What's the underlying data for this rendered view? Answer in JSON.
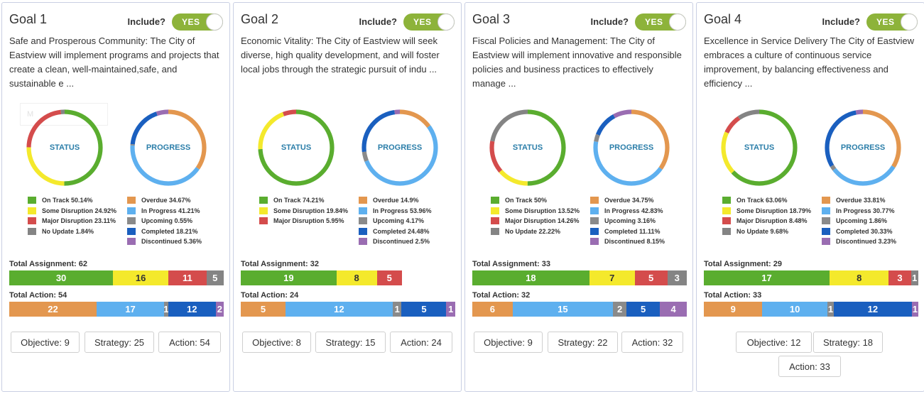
{
  "include_label": "Include?",
  "toggle_label": "YES",
  "status_center": "STATUS",
  "progress_center": "PROGRESS",
  "status_colors": [
    "#5aad2f",
    "#f4e92c",
    "#d44c4c",
    "#848484"
  ],
  "progress_colors": [
    "#e3974f",
    "#5eb0ef",
    "#8a8a8a",
    "#1a5fbf",
    "#9a6db2"
  ],
  "ghost_text": "M",
  "goals": [
    {
      "title": "Goal 1",
      "description": "Safe and Prosperous Community: The City of Eastview will implement programs and projects that create a clean, well-maintained,safe, and sustainable e ...",
      "status": [
        {
          "label": "On Track 50.14%",
          "value": 50.14
        },
        {
          "label": "Some Disruption 24.92%",
          "value": 24.92
        },
        {
          "label": "Major Disruption 23.11%",
          "value": 23.11
        },
        {
          "label": "No Update 1.84%",
          "value": 1.84
        }
      ],
      "progress": [
        {
          "label": "Overdue 34.67%",
          "value": 34.67
        },
        {
          "label": "In Progress 41.21%",
          "value": 41.21
        },
        {
          "label": "Upcoming 0.55%",
          "value": 0.55
        },
        {
          "label": "Completed 18.21%",
          "value": 18.21
        },
        {
          "label": "Discontinued 5.36%",
          "value": 5.36
        }
      ],
      "assignment_label": "Total Assignment: 62",
      "assignment_total": 62,
      "assignment_values": [
        30,
        16,
        11,
        5
      ],
      "action_label": "Total Action: 54",
      "action_total": 54,
      "action_values": [
        22,
        17,
        1,
        12,
        2
      ],
      "buttons": [
        "Objective: 9",
        "Strategy: 25",
        "Action: 54"
      ]
    },
    {
      "title": "Goal 2",
      "description": "Economic Vitality: The City of Eastview will seek diverse, high quality development, and will foster local jobs through the strategic pursuit of indu ...",
      "status": [
        {
          "label": "On Track 74.21%",
          "value": 74.21
        },
        {
          "label": "Some Disruption 19.84%",
          "value": 19.84
        },
        {
          "label": "Major Disruption 5.95%",
          "value": 5.95
        }
      ],
      "progress": [
        {
          "label": "Overdue 14.9%",
          "value": 14.9
        },
        {
          "label": "In Progress 53.96%",
          "value": 53.96
        },
        {
          "label": "Upcoming 4.17%",
          "value": 4.17
        },
        {
          "label": "Completed 24.48%",
          "value": 24.48
        },
        {
          "label": "Discontinued 2.5%",
          "value": 2.5
        }
      ],
      "assignment_label": "Total Assignment: 32",
      "assignment_total": 32,
      "assignment_values": [
        19,
        8,
        5
      ],
      "action_label": "Total Action: 24",
      "action_total": 24,
      "action_values": [
        5,
        12,
        1,
        5,
        1
      ],
      "buttons": [
        "Objective: 8",
        "Strategy: 15",
        "Action: 24"
      ]
    },
    {
      "title": "Goal 3",
      "description": "Fiscal Policies and Management: The City of Eastview will implement innovative and responsible policies and business practices to effectively manage ...",
      "status": [
        {
          "label": "On Track 50%",
          "value": 50
        },
        {
          "label": "Some Disruption 13.52%",
          "value": 13.52
        },
        {
          "label": "Major Disruption 14.26%",
          "value": 14.26
        },
        {
          "label": "No Update 22.22%",
          "value": 22.22
        }
      ],
      "progress": [
        {
          "label": "Overdue 34.75%",
          "value": 34.75
        },
        {
          "label": "In Progress 42.83%",
          "value": 42.83
        },
        {
          "label": "Upcoming 3.16%",
          "value": 3.16
        },
        {
          "label": "Completed 11.11%",
          "value": 11.11
        },
        {
          "label": "Discontinued 8.15%",
          "value": 8.15
        }
      ],
      "assignment_label": "Total Assignment: 33",
      "assignment_total": 33,
      "assignment_values": [
        18,
        7,
        5,
        3
      ],
      "action_label": "Total Action: 32",
      "action_total": 32,
      "action_values": [
        6,
        15,
        2,
        5,
        4
      ],
      "buttons": [
        "Objective: 9",
        "Strategy: 22",
        "Action: 32"
      ]
    },
    {
      "title": "Goal 4",
      "description": "Excellence in Service Delivery The City of Eastview embraces a culture of continuous service improvement, by balancing effectiveness and efficiency ...",
      "status": [
        {
          "label": "On Track 63.06%",
          "value": 63.06
        },
        {
          "label": "Some Disruption 18.79%",
          "value": 18.79
        },
        {
          "label": "Major Disruption 8.48%",
          "value": 8.48
        },
        {
          "label": "No Update 9.68%",
          "value": 9.68
        }
      ],
      "progress": [
        {
          "label": "Overdue 33.81%",
          "value": 33.81
        },
        {
          "label": "In Progress 30.77%",
          "value": 30.77
        },
        {
          "label": "Upcoming 1.86%",
          "value": 1.86
        },
        {
          "label": "Completed 30.33%",
          "value": 30.33
        },
        {
          "label": "Discontinued 3.23%",
          "value": 3.23
        }
      ],
      "assignment_label": "Total Assignment: 29",
      "assignment_total": 29,
      "assignment_values": [
        17,
        8,
        3,
        1
      ],
      "action_label": "Total Action: 33",
      "action_total": 33,
      "action_values": [
        9,
        10,
        1,
        12,
        1
      ],
      "buttons": [
        "Objective: 12",
        "Strategy: 18",
        "Action: 33"
      ]
    }
  ]
}
